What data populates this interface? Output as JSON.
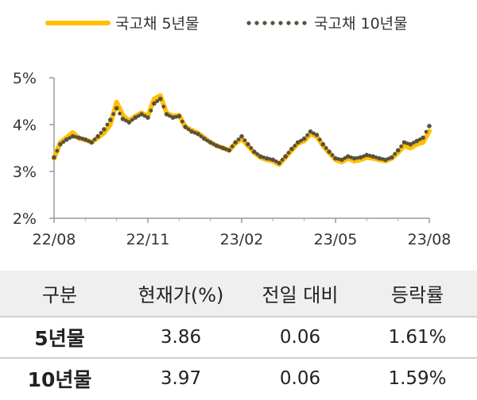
{
  "chart_data": {
    "type": "line",
    "title": "",
    "xlabel": "",
    "ylabel": "",
    "ylim": [
      2,
      5
    ],
    "yticks": [
      "2%",
      "3%",
      "4%",
      "5%"
    ],
    "xticks": [
      "22/08",
      "22/11",
      "23/02",
      "23/05",
      "23/08"
    ],
    "grid": false,
    "legend_position": "top",
    "x": [
      "22/08",
      "22/08",
      "22/08",
      "22/08",
      "22/08",
      "22/09",
      "22/09",
      "22/09",
      "22/09",
      "22/09",
      "22/10",
      "22/10",
      "22/10",
      "22/10",
      "22/10",
      "22/11",
      "22/11",
      "22/11",
      "22/11",
      "22/11",
      "22/12",
      "22/12",
      "22/12",
      "22/12",
      "22/12",
      "23/01",
      "23/01",
      "23/01",
      "23/01",
      "23/01",
      "23/02",
      "23/02",
      "23/02",
      "23/02",
      "23/02",
      "23/03",
      "23/03",
      "23/03",
      "23/03",
      "23/03",
      "23/04",
      "23/04",
      "23/04",
      "23/04",
      "23/04",
      "23/05",
      "23/05",
      "23/05",
      "23/05",
      "23/05",
      "23/06",
      "23/06",
      "23/06",
      "23/06",
      "23/06",
      "23/07",
      "23/07",
      "23/07",
      "23/07",
      "23/07",
      "23/08"
    ],
    "series": [
      {
        "name": "국고채 5년물",
        "color": "#ffc000",
        "style": "solid",
        "values": [
          3.28,
          3.62,
          3.72,
          3.83,
          3.7,
          3.68,
          3.62,
          3.72,
          3.82,
          4.0,
          4.48,
          4.2,
          4.08,
          4.18,
          4.25,
          4.18,
          4.55,
          4.62,
          4.25,
          4.18,
          4.2,
          3.95,
          3.88,
          3.82,
          3.72,
          3.62,
          3.55,
          3.5,
          3.45,
          3.6,
          3.7,
          3.55,
          3.4,
          3.3,
          3.25,
          3.22,
          3.15,
          3.3,
          3.45,
          3.6,
          3.65,
          3.8,
          3.75,
          3.55,
          3.4,
          3.25,
          3.2,
          3.28,
          3.22,
          3.25,
          3.3,
          3.28,
          3.25,
          3.22,
          3.28,
          3.4,
          3.55,
          3.5,
          3.58,
          3.62,
          3.86
        ]
      },
      {
        "name": "국고채 10년물",
        "color": "#5a5040",
        "style": "dotted",
        "values": [
          3.3,
          3.58,
          3.68,
          3.75,
          3.72,
          3.68,
          3.62,
          3.75,
          3.9,
          4.1,
          4.35,
          4.12,
          4.05,
          4.15,
          4.22,
          4.15,
          4.45,
          4.55,
          4.22,
          4.15,
          4.18,
          3.95,
          3.85,
          3.8,
          3.7,
          3.62,
          3.55,
          3.5,
          3.45,
          3.62,
          3.75,
          3.58,
          3.42,
          3.32,
          3.28,
          3.25,
          3.18,
          3.32,
          3.48,
          3.62,
          3.7,
          3.85,
          3.78,
          3.58,
          3.42,
          3.28,
          3.25,
          3.32,
          3.28,
          3.3,
          3.35,
          3.32,
          3.28,
          3.25,
          3.3,
          3.45,
          3.62,
          3.58,
          3.65,
          3.72,
          3.97
        ]
      }
    ]
  },
  "table": {
    "headers": [
      "구분",
      "현재가(%)",
      "전일 대비",
      "등락률"
    ],
    "rows": [
      [
        "5년물",
        "3.86",
        "0.06",
        "1.61%"
      ],
      [
        "10년물",
        "3.97",
        "0.06",
        "1.59%"
      ]
    ]
  }
}
